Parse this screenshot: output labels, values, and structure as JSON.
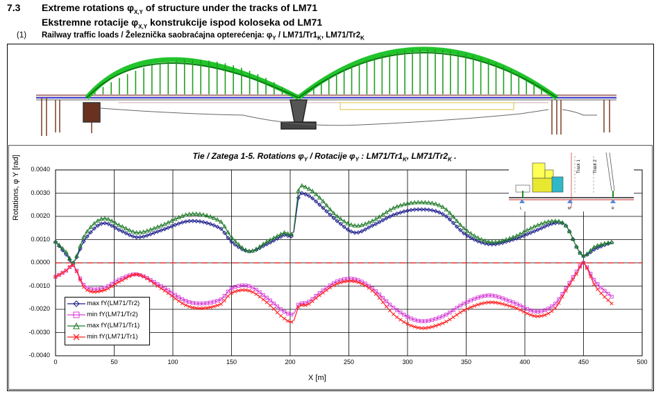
{
  "header": {
    "section_number": "7.3",
    "title_prefix": "Extreme rotations ",
    "title_phi": "φ",
    "title_sub": "X,Y",
    "title_suffix": " of structure under the tracks of LM71",
    "title2_prefix": "Ekstremne rotacije ",
    "title2_phi": "φ",
    "title2_sub": "X,Y",
    "title2_suffix": " konstrukcije ispod koloseka od LM71",
    "item_number": "(1)",
    "item_text_a": "Railway traffic loads / Železnička saobraćajna opterećenja: ",
    "item_phi": "φ",
    "item_sub": "Y",
    "item_text_b": " / LM71/Tr1",
    "item_k1": "K",
    "item_text_c": ", LM71/Tr2",
    "item_k2": "K"
  },
  "chart_data": {
    "type": "line",
    "title_a": "Tie / Zatega 1-5. Rotations  ",
    "title_phi1": "φ",
    "title_sub1": "Y",
    "title_b": " / Rotacije  ",
    "title_phi2": "φ",
    "title_sub2": "Y",
    "title_c": "  :  LM71/Tr1",
    "title_k1": "K",
    "title_d": ", LM71/Tr2",
    "title_k2": "K",
    "title_e": "  .",
    "xlabel": "X  [m]",
    "ylabel": "Rotations, φ Y [rad]",
    "xlim": [
      0,
      500
    ],
    "ylim": [
      -0.004,
      0.004
    ],
    "x_ticks": [
      "0",
      "50",
      "100",
      "150",
      "200",
      "250",
      "300",
      "350",
      "400",
      "450",
      "500"
    ],
    "y_ticks": [
      "0.0040",
      "0.0030",
      "0.0020",
      "0.0010",
      "0.0000",
      "-0.0010",
      "-0.0020",
      "-0.0030",
      "-0.0040"
    ],
    "grid": true,
    "legend_position": "bottom-left",
    "zero_line_color": "#e03030",
    "series": [
      {
        "name": "max fY(LM71/Tr2)",
        "color": "#1a1a8c",
        "marker": "diamond",
        "x": [
          0,
          10,
          15,
          25,
          40,
          55,
          70,
          90,
          115,
          140,
          150,
          165,
          180,
          195,
          203,
          207,
          215,
          225,
          240,
          255,
          270,
          290,
          310,
          330,
          350,
          370,
          390,
          410,
          425,
          435,
          445,
          450,
          460,
          475
        ],
        "y": [
          0.0009,
          0.0003,
          0.0,
          0.001,
          0.0017,
          0.0014,
          0.0011,
          0.0014,
          0.0018,
          0.0015,
          0.0009,
          0.0005,
          0.0008,
          0.0012,
          0.0013,
          0.0028,
          0.0029,
          0.0025,
          0.0018,
          0.0013,
          0.0016,
          0.0021,
          0.0023,
          0.0021,
          0.0012,
          0.0008,
          0.001,
          0.0014,
          0.0017,
          0.0016,
          0.0006,
          0.0003,
          0.0006,
          0.0009
        ]
      },
      {
        "name": "min fY(LM71/Tr2)",
        "color": "#d63cd6",
        "marker": "square",
        "x": [
          0,
          10,
          15,
          25,
          40,
          55,
          70,
          90,
          115,
          140,
          150,
          165,
          180,
          195,
          203,
          207,
          215,
          225,
          240,
          255,
          270,
          290,
          310,
          330,
          350,
          370,
          390,
          410,
          425,
          435,
          445,
          450,
          460,
          475
        ],
        "y": [
          -0.0006,
          -0.0003,
          -0.0001,
          -0.001,
          -0.0011,
          -0.0007,
          -0.0005,
          -0.001,
          -0.0017,
          -0.0016,
          -0.0011,
          -0.001,
          -0.0015,
          -0.0021,
          -0.0022,
          -0.0018,
          -0.0017,
          -0.0013,
          -0.0008,
          -0.0007,
          -0.0011,
          -0.002,
          -0.0025,
          -0.0023,
          -0.0017,
          -0.0014,
          -0.0017,
          -0.0021,
          -0.0018,
          -0.0011,
          -0.0003,
          0.0,
          -0.0008,
          -0.0015
        ]
      },
      {
        "name": "max fY(LM71/Tr1)",
        "color": "#1e7a28",
        "marker": "triangle",
        "x": [
          0,
          10,
          15,
          25,
          40,
          55,
          70,
          90,
          115,
          140,
          150,
          165,
          180,
          195,
          203,
          207,
          215,
          225,
          240,
          255,
          270,
          290,
          310,
          330,
          350,
          370,
          390,
          410,
          425,
          435,
          445,
          450,
          460,
          475
        ],
        "y": [
          0.0009,
          0.0004,
          0.0,
          0.0012,
          0.0019,
          0.0016,
          0.0013,
          0.0016,
          0.0021,
          0.0018,
          0.0011,
          0.0005,
          0.0009,
          0.0013,
          0.0014,
          0.0031,
          0.0032,
          0.0028,
          0.002,
          0.0016,
          0.0018,
          0.0024,
          0.0026,
          0.0024,
          0.0014,
          0.0009,
          0.0011,
          0.0016,
          0.0018,
          0.0016,
          0.0006,
          0.0003,
          0.0007,
          0.0009
        ]
      },
      {
        "name": "min fY(LM71/Tr1)",
        "color": "#ff2020",
        "marker": "x",
        "x": [
          0,
          10,
          15,
          25,
          40,
          55,
          70,
          90,
          115,
          140,
          150,
          165,
          180,
          195,
          203,
          207,
          215,
          225,
          240,
          255,
          270,
          290,
          310,
          330,
          350,
          370,
          390,
          410,
          425,
          435,
          445,
          450,
          460,
          475
        ],
        "y": [
          -0.0006,
          -0.0003,
          -0.0001,
          -0.0011,
          -0.0012,
          -0.0008,
          -0.0005,
          -0.0011,
          -0.0019,
          -0.0018,
          -0.0013,
          -0.0012,
          -0.0017,
          -0.0024,
          -0.0025,
          -0.0019,
          -0.0018,
          -0.0014,
          -0.0009,
          -0.0008,
          -0.0012,
          -0.0023,
          -0.0028,
          -0.0026,
          -0.002,
          -0.0017,
          -0.0019,
          -0.0023,
          -0.002,
          -0.0012,
          -0.0004,
          0.0,
          -0.001,
          -0.0018
        ]
      }
    ]
  },
  "inset": {
    "labels": [
      "Track 1",
      "Track 2",
      "L",
      "M",
      "R"
    ]
  }
}
